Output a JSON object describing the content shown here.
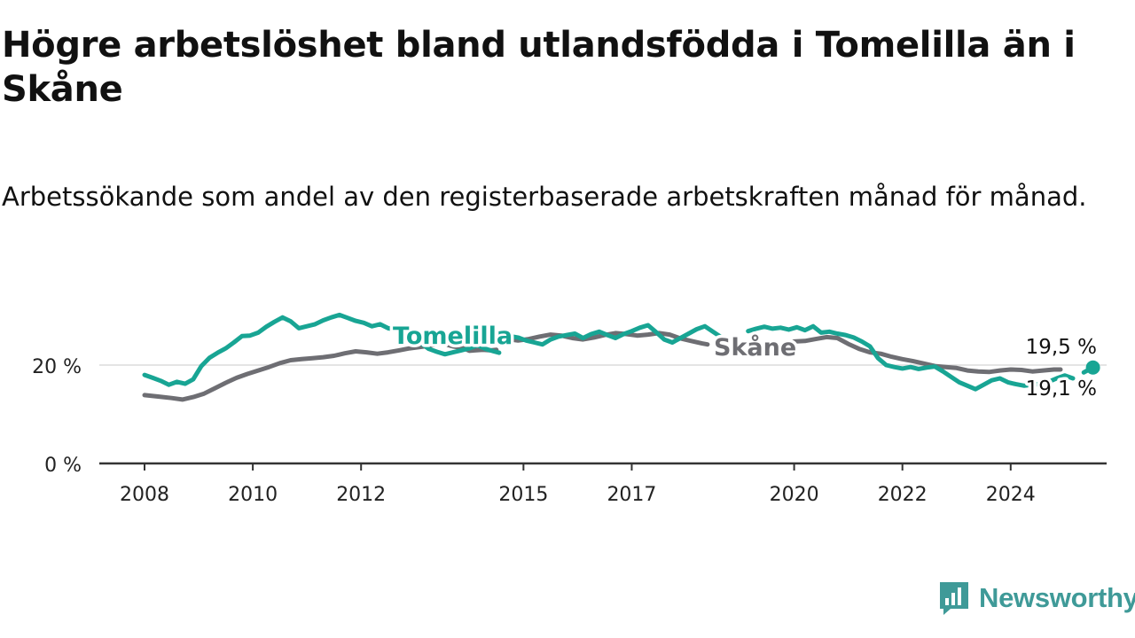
{
  "title": "Högre arbetslöshet bland utlandsfödda i Tomelilla än i Skåne",
  "subtitle": "Arbetssökande som andel av den registerbaserade arbetskraften månad för månad.",
  "brand": {
    "name": "Newsworthy",
    "icon": "newsworthy-logo-icon",
    "color": "#3f9a98"
  },
  "chart_data": {
    "type": "line",
    "x_axis": {
      "min": 2007.85,
      "max": 2025.6,
      "ticks": [
        2008,
        2010,
        2012,
        2015,
        2017,
        2020,
        2022,
        2024
      ],
      "tick_labels": [
        "2008",
        "2010",
        "2012",
        "2015",
        "2017",
        "2020",
        "2022",
        "2024"
      ]
    },
    "y_axis": {
      "min": 0,
      "max": 32,
      "ticks": [
        0,
        20
      ],
      "tick_labels": [
        "0 %",
        "20 %"
      ]
    },
    "grid": {
      "horizontal": true,
      "vertical": false
    },
    "series": [
      {
        "name": "Skåne",
        "color": "#6e6e73",
        "label": "Skåne",
        "end_label": "19,1 %",
        "segments": [
          [
            [
              2008.0,
              13.9
            ],
            [
              2008.25,
              13.6
            ],
            [
              2008.5,
              13.3
            ],
            [
              2008.7,
              13.0
            ],
            [
              2008.9,
              13.5
            ],
            [
              2009.1,
              14.2
            ],
            [
              2009.3,
              15.3
            ],
            [
              2009.5,
              16.4
            ],
            [
              2009.7,
              17.4
            ],
            [
              2009.9,
              18.2
            ],
            [
              2010.1,
              18.9
            ],
            [
              2010.3,
              19.6
            ],
            [
              2010.5,
              20.4
            ],
            [
              2010.7,
              21.0
            ],
            [
              2010.9,
              21.2
            ],
            [
              2011.1,
              21.4
            ],
            [
              2011.3,
              21.6
            ],
            [
              2011.5,
              21.9
            ],
            [
              2011.7,
              22.4
            ],
            [
              2011.9,
              22.8
            ],
            [
              2012.1,
              22.6
            ],
            [
              2012.3,
              22.3
            ],
            [
              2012.5,
              22.6
            ],
            [
              2012.7,
              23.0
            ],
            [
              2012.9,
              23.4
            ],
            [
              2013.1,
              23.7
            ],
            [
              2013.3,
              24.0
            ],
            [
              2013.5,
              24.4
            ],
            [
              2013.7,
              23.8
            ],
            [
              2013.9,
              23.4
            ],
            [
              2014.0,
              22.9
            ],
            [
              2014.1,
              23.0
            ],
            [
              2014.25,
              23.1
            ],
            [
              2014.4,
              23.0
            ],
            [
              2014.5,
              23.1
            ]
          ],
          [
            [
              2014.55,
              25.2
            ],
            [
              2014.7,
              25.3
            ],
            [
              2014.9,
              25.0
            ],
            [
              2015.1,
              25.3
            ],
            [
              2015.3,
              25.8
            ],
            [
              2015.5,
              26.2
            ],
            [
              2015.7,
              26.0
            ],
            [
              2015.9,
              25.5
            ],
            [
              2016.1,
              25.2
            ],
            [
              2016.3,
              25.6
            ],
            [
              2016.5,
              26.1
            ],
            [
              2016.7,
              26.5
            ],
            [
              2016.9,
              26.3
            ],
            [
              2017.1,
              26.0
            ],
            [
              2017.3,
              26.2
            ],
            [
              2017.5,
              26.5
            ],
            [
              2017.7,
              26.2
            ],
            [
              2017.9,
              25.4
            ],
            [
              2018.1,
              24.9
            ],
            [
              2018.3,
              24.4
            ],
            [
              2018.4,
              24.2
            ]
          ],
          [
            [
              2019.05,
              22.7
            ],
            [
              2019.2,
              23.0
            ],
            [
              2019.4,
              23.3
            ],
            [
              2019.6,
              23.6
            ],
            [
              2019.8,
              24.2
            ],
            [
              2020.0,
              24.8
            ],
            [
              2020.2,
              24.9
            ],
            [
              2020.4,
              25.3
            ],
            [
              2020.6,
              25.7
            ],
            [
              2020.8,
              25.5
            ],
            [
              2021.0,
              24.3
            ],
            [
              2021.2,
              23.3
            ],
            [
              2021.4,
              22.6
            ],
            [
              2021.6,
              22.3
            ],
            [
              2021.8,
              21.7
            ],
            [
              2022.0,
              21.2
            ],
            [
              2022.2,
              20.8
            ],
            [
              2022.4,
              20.3
            ],
            [
              2022.6,
              19.8
            ],
            [
              2022.8,
              19.6
            ],
            [
              2023.0,
              19.4
            ],
            [
              2023.2,
              18.9
            ],
            [
              2023.4,
              18.7
            ],
            [
              2023.6,
              18.6
            ],
            [
              2023.8,
              18.9
            ],
            [
              2024.0,
              19.1
            ],
            [
              2024.2,
              19.0
            ],
            [
              2024.4,
              18.7
            ],
            [
              2024.6,
              18.9
            ],
            [
              2024.8,
              19.1
            ],
            [
              2024.92,
              19.1
            ]
          ]
        ]
      },
      {
        "name": "Tomelilla",
        "color": "#18a594",
        "label": "Tomelilla",
        "end_label": "19,5 %",
        "segments": [
          [
            [
              2008.0,
              18.0
            ],
            [
              2008.15,
              17.4
            ],
            [
              2008.3,
              16.8
            ],
            [
              2008.45,
              16.0
            ],
            [
              2008.6,
              16.6
            ],
            [
              2008.75,
              16.2
            ],
            [
              2008.9,
              17.1
            ],
            [
              2009.05,
              19.8
            ],
            [
              2009.2,
              21.5
            ],
            [
              2009.35,
              22.5
            ],
            [
              2009.5,
              23.4
            ],
            [
              2009.65,
              24.6
            ],
            [
              2009.8,
              25.9
            ],
            [
              2009.95,
              26.0
            ],
            [
              2010.1,
              26.6
            ],
            [
              2010.25,
              27.8
            ],
            [
              2010.4,
              28.8
            ],
            [
              2010.55,
              29.7
            ],
            [
              2010.7,
              28.9
            ],
            [
              2010.85,
              27.5
            ],
            [
              2011.0,
              27.9
            ],
            [
              2011.15,
              28.3
            ],
            [
              2011.3,
              29.1
            ],
            [
              2011.45,
              29.7
            ],
            [
              2011.6,
              30.2
            ],
            [
              2011.75,
              29.6
            ],
            [
              2011.9,
              29.0
            ],
            [
              2012.05,
              28.6
            ],
            [
              2012.2,
              27.9
            ],
            [
              2012.35,
              28.3
            ],
            [
              2012.5,
              27.5
            ],
            [
              2012.65,
              27.2
            ],
            [
              2012.8,
              26.7
            ],
            [
              2012.95,
              26.0
            ],
            [
              2013.1,
              24.5
            ],
            [
              2013.25,
              23.3
            ],
            [
              2013.4,
              22.7
            ],
            [
              2013.55,
              22.2
            ],
            [
              2013.7,
              22.6
            ],
            [
              2013.85,
              23.0
            ],
            [
              2014.0,
              23.4
            ],
            [
              2014.15,
              24.0
            ],
            [
              2014.3,
              23.3
            ],
            [
              2014.45,
              22.8
            ],
            [
              2014.55,
              22.5
            ]
          ],
          [
            [
              2014.6,
              25.5
            ],
            [
              2014.75,
              25.9
            ],
            [
              2014.9,
              25.6
            ],
            [
              2015.05,
              25.0
            ],
            [
              2015.2,
              24.6
            ],
            [
              2015.35,
              24.2
            ],
            [
              2015.5,
              25.2
            ],
            [
              2015.65,
              25.8
            ],
            [
              2015.8,
              26.1
            ],
            [
              2015.95,
              26.4
            ],
            [
              2016.1,
              25.5
            ],
            [
              2016.25,
              26.3
            ],
            [
              2016.4,
              26.8
            ],
            [
              2016.55,
              26.1
            ],
            [
              2016.7,
              25.5
            ],
            [
              2016.85,
              26.3
            ],
            [
              2017.0,
              26.9
            ],
            [
              2017.15,
              27.6
            ],
            [
              2017.3,
              28.1
            ],
            [
              2017.45,
              26.7
            ],
            [
              2017.6,
              25.2
            ],
            [
              2017.75,
              24.6
            ],
            [
              2017.9,
              25.5
            ],
            [
              2018.05,
              26.4
            ],
            [
              2018.2,
              27.3
            ],
            [
              2018.35,
              27.9
            ],
            [
              2018.5,
              26.8
            ],
            [
              2018.65,
              25.7
            ],
            [
              2018.75,
              25.2
            ]
          ],
          [
            [
              2019.15,
              26.9
            ],
            [
              2019.3,
              27.4
            ],
            [
              2019.45,
              27.8
            ],
            [
              2019.6,
              27.4
            ],
            [
              2019.75,
              27.6
            ],
            [
              2019.9,
              27.2
            ],
            [
              2020.05,
              27.7
            ],
            [
              2020.2,
              27.1
            ],
            [
              2020.35,
              27.9
            ],
            [
              2020.5,
              26.6
            ],
            [
              2020.65,
              26.8
            ],
            [
              2020.8,
              26.4
            ],
            [
              2020.95,
              26.1
            ],
            [
              2021.1,
              25.6
            ],
            [
              2021.25,
              24.8
            ],
            [
              2021.4,
              23.8
            ],
            [
              2021.55,
              21.4
            ],
            [
              2021.7,
              20.0
            ],
            [
              2021.85,
              19.6
            ],
            [
              2022.0,
              19.3
            ],
            [
              2022.15,
              19.6
            ],
            [
              2022.3,
              19.2
            ],
            [
              2022.45,
              19.5
            ],
            [
              2022.6,
              19.7
            ],
            [
              2022.75,
              18.7
            ],
            [
              2022.9,
              17.6
            ],
            [
              2023.05,
              16.5
            ],
            [
              2023.2,
              15.8
            ],
            [
              2023.35,
              15.1
            ],
            [
              2023.5,
              16.0
            ],
            [
              2023.65,
              16.9
            ],
            [
              2023.8,
              17.3
            ],
            [
              2023.95,
              16.5
            ],
            [
              2024.1,
              16.1
            ],
            [
              2024.25,
              15.8
            ],
            [
              2024.4,
              16.0
            ],
            [
              2024.55,
              16.2
            ],
            [
              2024.7,
              16.6
            ],
            [
              2024.85,
              17.3
            ],
            [
              2025.0,
              17.9
            ],
            [
              2025.15,
              17.3
            ]
          ],
          [
            [
              2025.35,
              18.5
            ],
            [
              2025.45,
              19.1
            ],
            [
              2025.52,
              19.5
            ]
          ]
        ]
      }
    ]
  }
}
